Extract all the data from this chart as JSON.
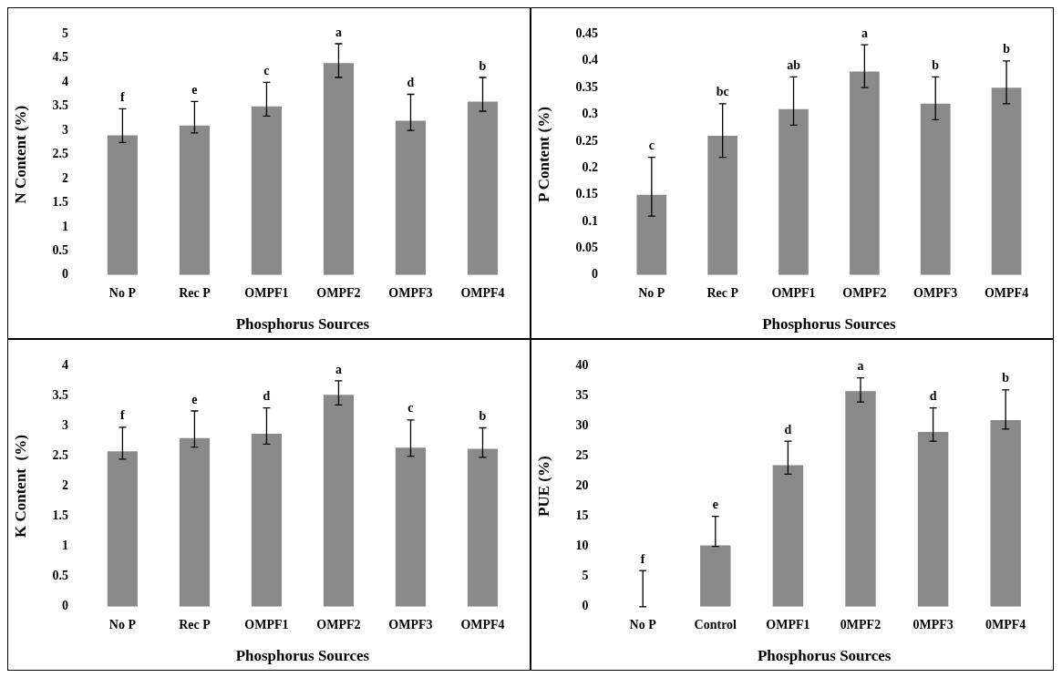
{
  "chart_data": [
    {
      "type": "bar",
      "xlabel": "Phosphorus Sources",
      "ylabel": "N Content (%)",
      "categories": [
        "No P",
        "Rec P",
        "OMPF1",
        "OMPF2",
        "OMPF3",
        "OMPF4"
      ],
      "color": "#8a8a8a",
      "values": [
        2.9,
        3.1,
        3.5,
        4.4,
        3.2,
        3.6
      ],
      "errors": [
        [
          2.75,
          3.45
        ],
        [
          2.95,
          3.6
        ],
        [
          3.3,
          4.0
        ],
        [
          4.1,
          4.8
        ],
        [
          3.0,
          3.75
        ],
        [
          3.4,
          4.1
        ]
      ],
      "ylim": [
        0,
        5
      ],
      "yticks": [
        0,
        0.5,
        1,
        1.5,
        2,
        2.5,
        3,
        3.5,
        4,
        4.5,
        5
      ],
      "grid": false,
      "legend": false,
      "annotations": [
        {
          "text": "f",
          "x": "No P",
          "y": 3.45
        },
        {
          "text": "e",
          "x": "Rec P",
          "y": 3.6
        },
        {
          "text": "c",
          "x": "OMPF1",
          "y": 4.0
        },
        {
          "text": "a",
          "x": "OMPF2",
          "y": 4.8
        },
        {
          "text": "d",
          "x": "OMPF3",
          "y": 3.75
        },
        {
          "text": "b",
          "x": "OMPF4",
          "y": 4.1
        }
      ]
    },
    {
      "type": "bar",
      "xlabel": "Phosphorus Sources",
      "ylabel": "P Content (%)",
      "categories": [
        "No P",
        "Rec P",
        "OMPF1",
        "OMPF2",
        "OMPF3",
        "OMPF4"
      ],
      "color": "#8a8a8a",
      "values": [
        0.15,
        0.26,
        0.31,
        0.38,
        0.32,
        0.35
      ],
      "errors": [
        [
          0.11,
          0.22
        ],
        [
          0.22,
          0.32
        ],
        [
          0.28,
          0.37
        ],
        [
          0.35,
          0.43
        ],
        [
          0.29,
          0.37
        ],
        [
          0.32,
          0.4
        ]
      ],
      "ylim": [
        0,
        0.45
      ],
      "yticks": [
        0,
        0.05,
        0.1,
        0.15,
        0.2,
        0.25,
        0.3,
        0.35,
        0.4,
        0.45
      ],
      "grid": false,
      "legend": false,
      "annotations": [
        {
          "text": "c",
          "x": "No P",
          "y": 0.22
        },
        {
          "text": "bc",
          "x": "Rec P",
          "y": 0.32
        },
        {
          "text": "ab",
          "x": "OMPF1",
          "y": 0.37
        },
        {
          "text": "a",
          "x": "OMPF2",
          "y": 0.43
        },
        {
          "text": "b",
          "x": "OMPF3",
          "y": 0.37
        },
        {
          "text": "b",
          "x": "OMPF4",
          "y": 0.4
        }
      ]
    },
    {
      "type": "bar",
      "xlabel": "Phosphorus Sources",
      "ylabel": "K Content  (%)",
      "categories": [
        "No P",
        "Rec P",
        "OMPF1",
        "OMPF2",
        "OMPF3",
        "OMPF4"
      ],
      "color": "#8a8a8a",
      "values": [
        2.58,
        2.8,
        2.87,
        3.52,
        2.64,
        2.62
      ],
      "errors": [
        [
          2.45,
          2.98
        ],
        [
          2.65,
          3.25
        ],
        [
          2.7,
          3.3
        ],
        [
          3.35,
          3.75
        ],
        [
          2.5,
          3.1
        ],
        [
          2.48,
          2.97
        ]
      ],
      "ylim": [
        0,
        4
      ],
      "yticks": [
        0,
        0.5,
        1,
        1.5,
        2,
        2.5,
        3,
        3.5,
        4
      ],
      "grid": false,
      "legend": false,
      "annotations": [
        {
          "text": "f",
          "x": "No P",
          "y": 2.98
        },
        {
          "text": "e",
          "x": "Rec P",
          "y": 3.25
        },
        {
          "text": "d",
          "x": "OMPF1",
          "y": 3.3
        },
        {
          "text": "a",
          "x": "OMPF2",
          "y": 3.75
        },
        {
          "text": "c",
          "x": "OMPF3",
          "y": 3.1
        },
        {
          "text": "b",
          "x": "OMPF4",
          "y": 2.97
        }
      ]
    },
    {
      "type": "bar",
      "xlabel": "Phosphorus Sources",
      "ylabel": "PUE (%)",
      "categories": [
        "No P",
        "Control",
        "OMPF1",
        "0MPF2",
        "0MPF3",
        "0MPF4"
      ],
      "color": "#8a8a8a",
      "values": [
        0,
        10.2,
        23.5,
        35.8,
        29,
        31
      ],
      "errors": [
        [
          0,
          6
        ],
        [
          10,
          15
        ],
        [
          22,
          27.5
        ],
        [
          34,
          38
        ],
        [
          27.5,
          33
        ],
        [
          29.5,
          36
        ]
      ],
      "ylim": [
        0,
        40
      ],
      "yticks": [
        0,
        5,
        10,
        15,
        20,
        25,
        30,
        35,
        40
      ],
      "grid": false,
      "legend": false,
      "annotations": [
        {
          "text": "f",
          "x": "No P",
          "y": 6
        },
        {
          "text": "e",
          "x": "Control",
          "y": 15
        },
        {
          "text": "d",
          "x": "OMPF1",
          "y": 27.5
        },
        {
          "text": "a",
          "x": "0MPF2",
          "y": 38
        },
        {
          "text": "d",
          "x": "0MPF3",
          "y": 33
        },
        {
          "text": "b",
          "x": "0MPF4",
          "y": 36
        }
      ]
    }
  ]
}
